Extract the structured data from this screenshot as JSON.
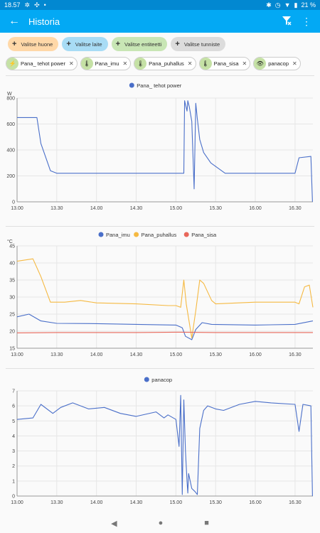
{
  "status_bar": {
    "time": "18.57",
    "battery": "21 %"
  },
  "header": {
    "title": "Historia"
  },
  "pickers": [
    {
      "label": "Valitse huone",
      "color": "#ffd8a8"
    },
    {
      "label": "Valitse laite",
      "color": "#a8dcf5"
    },
    {
      "label": "Valitse entiteetti",
      "color": "#c8e6b5"
    },
    {
      "label": "Valitse tunniste",
      "color": "#dcdcdc"
    }
  ],
  "chips": [
    {
      "label": "Pana_ tehot power",
      "icon": "bolt-icon",
      "glyph": "⚡"
    },
    {
      "label": "Pana_imu",
      "icon": "thermometer-icon",
      "glyph": "🌡"
    },
    {
      "label": "Pana_puhallus",
      "icon": "thermometer-icon",
      "glyph": "🌡"
    },
    {
      "label": "Pana_sisa",
      "icon": "thermometer-icon",
      "glyph": "🌡"
    },
    {
      "label": "panacop",
      "icon": "eye-icon",
      "glyph": "👁"
    }
  ],
  "chart_data": [
    {
      "type": "line",
      "ylabel": "W",
      "ylim": [
        0,
        800
      ],
      "yticks": [
        0,
        200,
        400,
        600,
        800
      ],
      "xticks": [
        "13.00",
        "13.30",
        "14.00",
        "14.30",
        "15.00",
        "15.30",
        "16.00",
        "16.30"
      ],
      "xlim": [
        13.0,
        16.725
      ],
      "legend": "top-center",
      "series": [
        {
          "name": "Pana_ tehot power",
          "color": "#4a6fc9",
          "x": [
            13.0,
            13.25,
            13.3,
            13.42,
            13.5,
            15.1,
            15.11,
            15.14,
            15.15,
            15.17,
            15.2,
            15.23,
            15.25,
            15.27,
            15.3,
            15.35,
            15.44,
            15.62,
            16.5,
            16.55,
            16.7,
            16.72
          ],
          "y": [
            650,
            650,
            450,
            240,
            220,
            220,
            780,
            700,
            780,
            730,
            620,
            100,
            760,
            640,
            480,
            380,
            300,
            220,
            220,
            340,
            350,
            0
          ]
        }
      ]
    },
    {
      "type": "line",
      "ylabel": "°C",
      "ylim": [
        15,
        45
      ],
      "yticks": [
        15,
        20,
        25,
        30,
        35,
        40,
        45
      ],
      "xticks": [
        "13.00",
        "13.30",
        "14.00",
        "14.30",
        "15.00",
        "15.30",
        "16.00",
        "16.30"
      ],
      "xlim": [
        13.0,
        16.725
      ],
      "legend": "top-center",
      "series": [
        {
          "name": "Pana_imu",
          "color": "#4a6fc9",
          "x": [
            13.0,
            13.15,
            13.3,
            13.5,
            14.0,
            14.5,
            15.0,
            15.08,
            15.12,
            15.2,
            15.25,
            15.33,
            15.45,
            16.0,
            16.5,
            16.725
          ],
          "y": [
            24.2,
            25.0,
            23.0,
            22.3,
            22.2,
            22.0,
            21.8,
            21.0,
            18.5,
            17.5,
            20.5,
            22.5,
            22.0,
            21.8,
            22.0,
            23.0
          ]
        },
        {
          "name": "Pana_puhallus",
          "color": "#f5b942",
          "x": [
            13.0,
            13.2,
            13.3,
            13.42,
            13.6,
            13.8,
            14.0,
            14.5,
            14.9,
            15.0,
            15.06,
            15.1,
            15.13,
            15.2,
            15.25,
            15.3,
            15.35,
            15.45,
            15.5,
            16.0,
            16.5,
            16.55,
            16.62,
            16.68,
            16.725
          ],
          "y": [
            40.5,
            41.2,
            36.0,
            28.5,
            28.5,
            29.0,
            28.3,
            28.0,
            27.5,
            27.5,
            27.0,
            35.0,
            28.0,
            18.0,
            26.0,
            35.0,
            34.0,
            29.0,
            28.0,
            28.5,
            28.5,
            28.0,
            33.0,
            33.5,
            27.0
          ]
        },
        {
          "name": "Pana_sisa",
          "color": "#e8675a",
          "x": [
            13.0,
            13.5,
            14.0,
            14.5,
            15.0,
            15.5,
            16.0,
            16.725
          ],
          "y": [
            19.5,
            19.6,
            19.6,
            19.6,
            19.7,
            19.6,
            19.6,
            19.6
          ]
        }
      ]
    },
    {
      "type": "line",
      "ylabel": "",
      "ylim": [
        0,
        7
      ],
      "yticks": [
        0,
        1,
        2,
        3,
        4,
        5,
        6,
        7
      ],
      "xticks": [
        "13.00",
        "13.30",
        "14.00",
        "14.30",
        "15.00",
        "15.30",
        "16.00",
        "16.30"
      ],
      "xlim": [
        13.0,
        16.725
      ],
      "legend": "top-center",
      "series": [
        {
          "name": "panacop",
          "color": "#4a6fc9",
          "x": [
            13.0,
            13.2,
            13.3,
            13.45,
            13.55,
            13.7,
            13.9,
            14.1,
            14.3,
            14.5,
            14.75,
            14.85,
            14.9,
            15.0,
            15.04,
            15.06,
            15.08,
            15.1,
            15.12,
            15.14,
            15.15,
            15.16,
            15.2,
            15.24,
            15.27,
            15.3,
            15.35,
            15.4,
            15.5,
            15.6,
            15.8,
            16.0,
            16.2,
            16.5,
            16.55,
            16.6,
            16.7,
            16.72
          ],
          "y": [
            5.1,
            5.2,
            6.1,
            5.5,
            5.9,
            6.2,
            5.8,
            5.9,
            5.5,
            5.3,
            5.6,
            5.2,
            5.4,
            5.1,
            3.3,
            6.7,
            0.1,
            6.4,
            3.0,
            1.0,
            0.2,
            1.5,
            0.5,
            0.3,
            0.1,
            4.5,
            5.7,
            6.0,
            5.8,
            5.7,
            6.1,
            6.3,
            6.2,
            6.1,
            4.3,
            6.1,
            6.0,
            0.0
          ]
        }
      ]
    }
  ],
  "nav": {
    "back": "◀",
    "home": "●",
    "recents": "■"
  }
}
